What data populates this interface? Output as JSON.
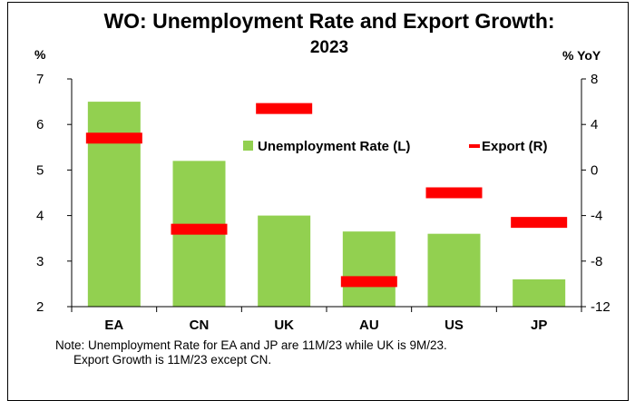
{
  "chart_data": {
    "type": "bar",
    "title": "WO: Unemployment Rate and Export Growth: 2023",
    "title_lines": [
      "WO: Unemployment Rate and Export Growth:",
      "2023"
    ],
    "categories": [
      "EA",
      "CN",
      "UK",
      "AU",
      "US",
      "JP"
    ],
    "y_left": {
      "label": "%",
      "ylim": [
        2,
        7
      ],
      "ticks": [
        "2",
        "3",
        "4",
        "5",
        "6",
        "7"
      ]
    },
    "y_right": {
      "label": "% YoY",
      "ylim": [
        -12,
        8
      ],
      "ticks": [
        "-12",
        "-8",
        "-4",
        "0",
        "4",
        "8"
      ]
    },
    "series": [
      {
        "name": "Unemployment Rate (L)",
        "type": "bar",
        "axis": "left",
        "color": "#92d050",
        "values": [
          6.5,
          5.2,
          4.0,
          3.65,
          3.6,
          2.6
        ]
      },
      {
        "name": "Export (R)",
        "type": "dash",
        "axis": "right",
        "color": "#ff0000",
        "values": [
          2.8,
          -5.2,
          5.4,
          -9.8,
          -2.0,
          -4.6
        ]
      }
    ],
    "legend": {
      "position": "right-middle"
    },
    "grid": false,
    "note_lines": [
      "Note: Unemployment Rate for EA and JP are 11M/23 while UK is 9M/23.",
      "Export Growth is 11M/23 except CN."
    ]
  }
}
